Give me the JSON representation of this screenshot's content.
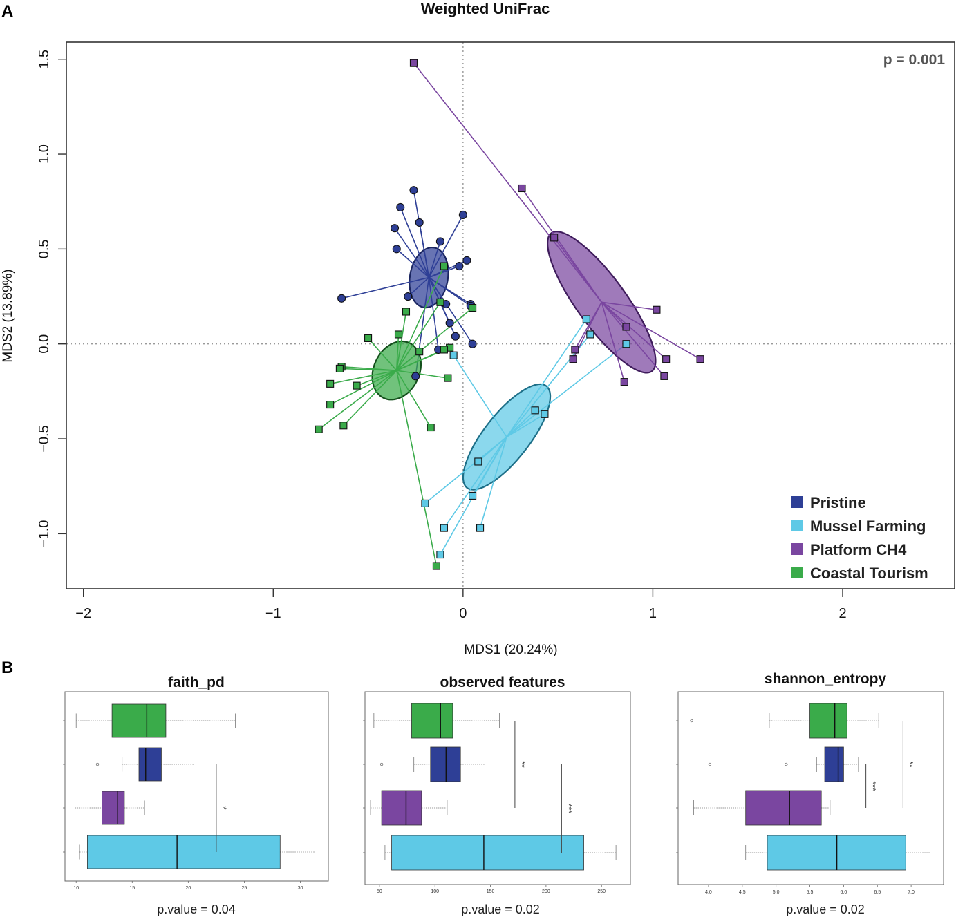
{
  "panels": {
    "a": "A",
    "b": "B"
  },
  "colors": {
    "Pristine": "#2e3f96",
    "Mussel Farming": "#5ec9e6",
    "Platform CH4": "#7a46a0",
    "Coastal Tourism": "#3aab4a",
    "dark": {
      "Pristine": "#1a2560",
      "Mussel Farming": "#1d6f88",
      "Platform CH4": "#3f1c5c",
      "Coastal Tourism": "#14501c"
    }
  },
  "chart_data": [
    {
      "type": "scatter",
      "title": "Weighted UniFrac",
      "xlabel": "MDS1 (20.24%)",
      "ylabel": "MDS2 (13.89%)",
      "xlim": [
        -2.09,
        2.59
      ],
      "ylim": [
        -1.29,
        1.59
      ],
      "xticks": [
        -2,
        -1,
        0,
        1,
        2
      ],
      "yticks": [
        -1.0,
        -0.5,
        0.0,
        0.5,
        1.0,
        1.5
      ],
      "xtick_labels": [
        "−2",
        "−1",
        "0",
        "1",
        "2"
      ],
      "ytick_labels": [
        "−1.0",
        "−0.5",
        "0.0",
        "0.5",
        "1.0",
        "1.5"
      ],
      "annotation": "p = 0.001",
      "legend_position": "bottom-right",
      "series": [
        {
          "name": "Pristine",
          "marker": "circle",
          "centroid": [
            -0.18,
            0.35
          ],
          "ellipse": {
            "rx": 0.1,
            "ry": 0.16,
            "angle_deg": 10
          },
          "points": [
            [
              -0.26,
              0.81
            ],
            [
              -0.33,
              0.72
            ],
            [
              -0.23,
              0.64
            ],
            [
              -0.36,
              0.61
            ],
            [
              -0.35,
              0.5
            ],
            [
              0.0,
              0.68
            ],
            [
              -0.12,
              0.54
            ],
            [
              0.02,
              0.44
            ],
            [
              -0.02,
              0.41
            ],
            [
              -0.64,
              0.24
            ],
            [
              -0.29,
              0.25
            ],
            [
              -0.09,
              0.21
            ],
            [
              0.04,
              0.21
            ],
            [
              0.04,
              0.2
            ],
            [
              -0.07,
              0.11
            ],
            [
              -0.04,
              0.04
            ],
            [
              0.05,
              0.0
            ],
            [
              -0.13,
              -0.03
            ],
            [
              -0.25,
              -0.17
            ]
          ]
        },
        {
          "name": "Mussel Farming",
          "marker": "square",
          "centroid": [
            0.23,
            -0.49
          ],
          "ellipse": {
            "rx": 0.12,
            "ry": 0.34,
            "angle_deg": 38
          },
          "points": [
            [
              0.65,
              0.13
            ],
            [
              0.67,
              0.05
            ],
            [
              0.86,
              0.0
            ],
            [
              -0.05,
              -0.06
            ],
            [
              0.38,
              -0.35
            ],
            [
              0.43,
              -0.37
            ],
            [
              0.08,
              -0.62
            ],
            [
              0.05,
              -0.8
            ],
            [
              -0.2,
              -0.84
            ],
            [
              -0.1,
              -0.97
            ],
            [
              0.09,
              -0.97
            ],
            [
              -0.12,
              -1.11
            ]
          ]
        },
        {
          "name": "Platform CH4",
          "marker": "square",
          "centroid": [
            0.73,
            0.22
          ],
          "ellipse": {
            "rx": 0.13,
            "ry": 0.45,
            "angle_deg": -36
          },
          "points": [
            [
              -0.26,
              1.48
            ],
            [
              0.31,
              0.82
            ],
            [
              0.48,
              0.56
            ],
            [
              1.02,
              0.18
            ],
            [
              0.86,
              0.09
            ],
            [
              0.59,
              -0.03
            ],
            [
              0.58,
              -0.08
            ],
            [
              1.07,
              -0.08
            ],
            [
              1.25,
              -0.08
            ],
            [
              1.06,
              -0.17
            ],
            [
              0.85,
              -0.2
            ]
          ]
        },
        {
          "name": "Coastal Tourism",
          "marker": "square",
          "centroid": [
            -0.35,
            -0.14
          ],
          "ellipse": {
            "rx": 0.12,
            "ry": 0.16,
            "angle_deg": 25
          },
          "points": [
            [
              -0.1,
              0.41
            ],
            [
              -0.12,
              0.22
            ],
            [
              0.05,
              0.19
            ],
            [
              -0.3,
              0.17
            ],
            [
              -0.34,
              0.05
            ],
            [
              -0.5,
              0.03
            ],
            [
              -0.07,
              -0.02
            ],
            [
              -0.1,
              -0.03
            ],
            [
              -0.23,
              -0.04
            ],
            [
              -0.64,
              -0.12
            ],
            [
              -0.65,
              -0.13
            ],
            [
              -0.08,
              -0.18
            ],
            [
              -0.7,
              -0.21
            ],
            [
              -0.56,
              -0.22
            ],
            [
              -0.7,
              -0.32
            ],
            [
              -0.63,
              -0.43
            ],
            [
              -0.76,
              -0.45
            ],
            [
              -0.17,
              -0.44
            ],
            [
              -0.14,
              -1.17
            ]
          ]
        }
      ]
    },
    {
      "type": "box",
      "title": "faith_pd",
      "p_value": "p.value = 0.04",
      "xlim": [
        9.0,
        32.5
      ],
      "xticks": [
        10,
        15,
        20,
        25,
        30
      ],
      "xtick_labels": [
        "10",
        "15",
        "20",
        "25",
        "30"
      ],
      "groups": [
        {
          "name": "Coastal Tourism",
          "whisker_low": 10.0,
          "q1": 13.2,
          "median": 16.3,
          "q3": 18.0,
          "whisker_high": 24.2,
          "outliers": []
        },
        {
          "name": "Pristine",
          "whisker_low": 14.1,
          "q1": 15.6,
          "median": 16.2,
          "q3": 17.6,
          "whisker_high": 20.5,
          "outliers": [
            11.9
          ]
        },
        {
          "name": "Platform CH4",
          "whisker_low": 9.9,
          "q1": 12.3,
          "median": 13.7,
          "q3": 14.3,
          "whisker_high": 16.1,
          "outliers": []
        },
        {
          "name": "Mussel Farming",
          "whisker_low": 10.3,
          "q1": 11.0,
          "median": 19.0,
          "q3": 28.2,
          "whisker_high": 31.3,
          "outliers": []
        }
      ],
      "significance": [
        {
          "label": "*",
          "from_group": 1,
          "to_group": 3,
          "x": 22.5
        }
      ]
    },
    {
      "type": "box",
      "title": "observed features",
      "p_value": "p.value = 0.02",
      "xlim": [
        37,
        276
      ],
      "xticks": [
        50,
        100,
        150,
        200,
        250
      ],
      "xtick_labels": [
        "50",
        "100",
        "150",
        "200",
        "250"
      ],
      "groups": [
        {
          "name": "Coastal Tourism",
          "whisker_low": 45,
          "q1": 79,
          "median": 105,
          "q3": 116,
          "whisker_high": 158,
          "outliers": []
        },
        {
          "name": "Pristine",
          "whisker_low": 81,
          "q1": 96,
          "median": 110,
          "q3": 123,
          "whisker_high": 145,
          "outliers": [
            52
          ]
        },
        {
          "name": "Platform CH4",
          "whisker_low": 42,
          "q1": 52,
          "median": 74,
          "q3": 88,
          "whisker_high": 111,
          "outliers": []
        },
        {
          "name": "Mussel Farming",
          "whisker_low": 55,
          "q1": 61,
          "median": 144,
          "q3": 234,
          "whisker_high": 263,
          "outliers": []
        }
      ],
      "significance": [
        {
          "label": "**",
          "from_group": 0,
          "to_group": 2,
          "x": 172
        },
        {
          "label": "***",
          "from_group": 1,
          "to_group": 3,
          "x": 214
        }
      ]
    },
    {
      "type": "box",
      "title": "shannon_entropy",
      "p_value": "p.value = 0.02",
      "xlim": [
        3.55,
        7.48
      ],
      "xticks": [
        4.0,
        4.5,
        5.0,
        5.5,
        6.0,
        6.5,
        7.0
      ],
      "xtick_labels": [
        "4.0",
        "4.5",
        "5.0",
        "5.5",
        "6.0",
        "6.5",
        "7.0"
      ],
      "groups": [
        {
          "name": "Coastal Tourism",
          "whisker_low": 4.9,
          "q1": 5.5,
          "median": 5.87,
          "q3": 6.05,
          "whisker_high": 6.52,
          "outliers": [
            3.75
          ]
        },
        {
          "name": "Pristine",
          "whisker_low": 5.6,
          "q1": 5.72,
          "median": 5.92,
          "q3": 6.0,
          "whisker_high": 6.22,
          "outliers": [
            4.02,
            5.15
          ]
        },
        {
          "name": "Platform CH4",
          "whisker_low": 3.78,
          "q1": 4.55,
          "median": 5.2,
          "q3": 5.67,
          "whisker_high": 5.8,
          "outliers": []
        },
        {
          "name": "Mussel Farming",
          "whisker_low": 4.55,
          "q1": 4.87,
          "median": 5.9,
          "q3": 6.92,
          "whisker_high": 7.28,
          "outliers": []
        }
      ],
      "significance": [
        {
          "label": "**",
          "from_group": 0,
          "to_group": 2,
          "x": 6.88
        },
        {
          "label": "***",
          "from_group": 1,
          "to_group": 2,
          "x": 6.33
        }
      ]
    }
  ]
}
